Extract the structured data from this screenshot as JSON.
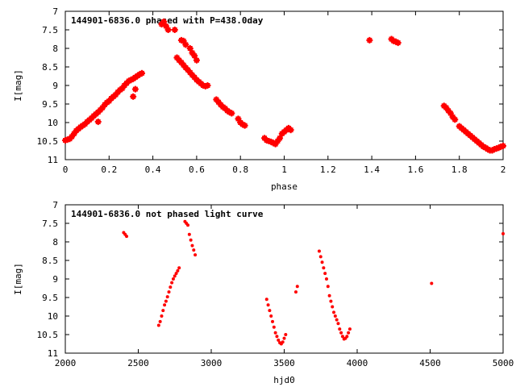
{
  "chart_data": [
    {
      "type": "scatter",
      "title": "144901-6836.0 phased with P=438.0day",
      "xlabel": "phase",
      "ylabel": "I[mag]",
      "xlim": [
        0,
        2
      ],
      "ylim": [
        7,
        11
      ],
      "y_inverted": true,
      "grid": false,
      "marker_color": "#ff0000",
      "xticks": [
        "0",
        "0.2",
        "0.4",
        "0.6",
        "0.8",
        "1",
        "1.2",
        "1.4",
        "1.6",
        "1.8",
        "2"
      ],
      "yticks": [
        "7",
        "7.5",
        "8",
        "8.5",
        "9",
        "9.5",
        "10",
        "10.5",
        "11"
      ],
      "series": [
        {
          "x": [
            0.0,
            0.01,
            0.02,
            0.03,
            0.04,
            0.05,
            0.06,
            0.07,
            0.08,
            0.09,
            0.1,
            0.11,
            0.12,
            0.13,
            0.14,
            0.15,
            0.16,
            0.17,
            0.18,
            0.19,
            0.2,
            0.21,
            0.22,
            0.23,
            0.24,
            0.25,
            0.26,
            0.27,
            0.28,
            0.29,
            0.3,
            0.31,
            0.32,
            0.33,
            0.34,
            0.35,
            0.15,
            0.31,
            0.32,
            0.44,
            0.45,
            0.46,
            0.47,
            0.5,
            0.53,
            0.54,
            0.55,
            0.57,
            0.58,
            0.59,
            0.6,
            0.51,
            0.52,
            0.53,
            0.54,
            0.55,
            0.56,
            0.57,
            0.58,
            0.59,
            0.6,
            0.61,
            0.62,
            0.63,
            0.64,
            0.65,
            0.69,
            0.7,
            0.71,
            0.72,
            0.73,
            0.74,
            0.75,
            0.76,
            0.79,
            0.8,
            0.81,
            0.82,
            0.91,
            0.92,
            0.93,
            0.94,
            0.95,
            0.96,
            0.97,
            0.98,
            0.99,
            1.0,
            1.01,
            1.02,
            1.03,
            1.39,
            1.49,
            1.5,
            1.51,
            1.52,
            1.73,
            1.74,
            1.75,
            1.76,
            1.77,
            1.78,
            1.8,
            1.81,
            1.82,
            1.83,
            1.84,
            1.85,
            1.86,
            1.87,
            1.88,
            1.89,
            1.9,
            1.91,
            1.92,
            1.93,
            1.94,
            1.95,
            1.96,
            1.97,
            1.98,
            1.99,
            2.0
          ],
          "y": [
            10.48,
            10.46,
            10.44,
            10.38,
            10.3,
            10.22,
            10.17,
            10.12,
            10.08,
            10.04,
            9.98,
            9.93,
            9.88,
            9.82,
            9.77,
            9.72,
            9.66,
            9.6,
            9.52,
            9.46,
            9.42,
            9.35,
            9.3,
            9.25,
            9.18,
            9.12,
            9.08,
            9.0,
            8.94,
            8.88,
            8.85,
            8.82,
            8.78,
            8.74,
            8.7,
            8.67,
            9.98,
            9.3,
            9.1,
            7.35,
            7.28,
            7.4,
            7.5,
            7.5,
            7.78,
            7.8,
            7.9,
            8.0,
            8.12,
            8.2,
            8.32,
            8.25,
            8.32,
            8.38,
            8.45,
            8.52,
            8.58,
            8.65,
            8.72,
            8.78,
            8.85,
            8.9,
            8.95,
            9.0,
            9.02,
            9.0,
            9.38,
            9.45,
            9.52,
            9.58,
            9.62,
            9.68,
            9.72,
            9.75,
            9.9,
            10.0,
            10.05,
            10.08,
            10.42,
            10.48,
            10.5,
            10.52,
            10.55,
            10.58,
            10.5,
            10.42,
            10.3,
            10.25,
            10.2,
            10.15,
            10.2,
            7.78,
            7.75,
            7.8,
            7.82,
            7.85,
            9.55,
            9.6,
            9.68,
            9.75,
            9.85,
            9.92,
            10.1,
            10.15,
            10.2,
            10.25,
            10.3,
            10.35,
            10.4,
            10.45,
            10.5,
            10.55,
            10.6,
            10.65,
            10.68,
            10.72,
            10.75,
            10.75,
            10.72,
            10.7,
            10.68,
            10.65,
            10.63
          ]
        }
      ]
    },
    {
      "type": "scatter",
      "title": "144901-6836.0 not phased light curve",
      "xlabel": "hjd0",
      "ylabel": "I[mag]",
      "xlim": [
        2000,
        5000
      ],
      "ylim": [
        7,
        11
      ],
      "y_inverted": true,
      "grid": false,
      "marker_color": "#ff0000",
      "xticks": [
        "2000",
        "2500",
        "3000",
        "3500",
        "4000",
        "4500",
        "5000"
      ],
      "yticks": [
        "7",
        "7.5",
        "8",
        "8.5",
        "9",
        "9.5",
        "10",
        "10.5",
        "11"
      ],
      "series": [
        {
          "x": [
            2400,
            2410,
            2420,
            2640,
            2650,
            2660,
            2670,
            2680,
            2690,
            2700,
            2710,
            2720,
            2730,
            2740,
            2750,
            2760,
            2770,
            2780,
            2820,
            2830,
            2840,
            2850,
            2860,
            2870,
            2880,
            2890,
            3380,
            3390,
            3400,
            3410,
            3420,
            3430,
            3440,
            3450,
            3460,
            3470,
            3480,
            3490,
            3500,
            3510,
            3580,
            3590,
            3740,
            3750,
            3760,
            3770,
            3780,
            3790,
            3800,
            3810,
            3820,
            3830,
            3840,
            3850,
            3860,
            3870,
            3880,
            3890,
            3900,
            3910,
            3920,
            3930,
            3940,
            3950,
            4510,
            5000
          ],
          "y": [
            7.75,
            7.8,
            7.85,
            10.25,
            10.15,
            10.0,
            9.85,
            9.7,
            9.6,
            9.48,
            9.35,
            9.22,
            9.1,
            9.0,
            8.92,
            8.85,
            8.78,
            8.7,
            7.45,
            7.5,
            7.55,
            7.8,
            7.95,
            8.1,
            8.22,
            8.35,
            9.55,
            9.7,
            9.85,
            10.0,
            10.15,
            10.3,
            10.45,
            10.55,
            10.65,
            10.72,
            10.75,
            10.7,
            10.6,
            10.5,
            9.35,
            9.2,
            8.25,
            8.4,
            8.55,
            8.7,
            8.85,
            9.0,
            9.2,
            9.45,
            9.6,
            9.75,
            9.9,
            10.0,
            10.1,
            10.2,
            10.35,
            10.45,
            10.55,
            10.62,
            10.6,
            10.55,
            10.45,
            10.35,
            9.12,
            7.78
          ]
        }
      ]
    }
  ]
}
